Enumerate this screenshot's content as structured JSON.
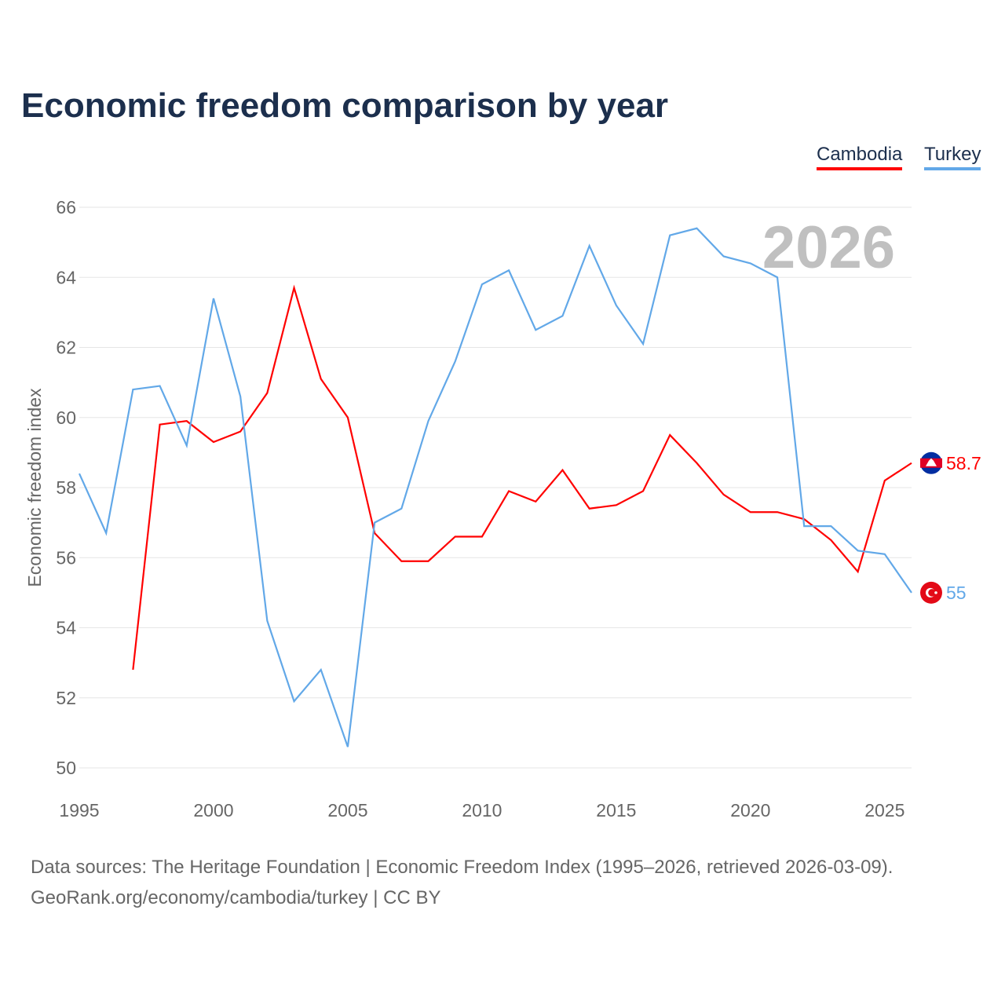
{
  "title": "Economic freedom comparison by year",
  "legend": [
    {
      "label": "Cambodia",
      "color": "#ff0000"
    },
    {
      "label": "Turkey",
      "color": "#62a8e8"
    }
  ],
  "footer": {
    "line1": "Data sources: The Heritage Foundation | Economic Freedom Index (1995–2026, retrieved 2026-03-09).",
    "line2": "GeoRank.org/economy/cambodia/turkey | CC BY"
  },
  "chart_data": {
    "type": "line",
    "title": "Economic freedom comparison by year",
    "ylabel": "Economic freedom index",
    "xlabel": "",
    "xlim": [
      1995,
      2026
    ],
    "ylim": [
      50,
      66
    ],
    "xticks": [
      "1995",
      "2000",
      "2005",
      "2010",
      "2015",
      "2020",
      "2025"
    ],
    "yticks": [
      "50",
      "52",
      "54",
      "56",
      "58",
      "60",
      "62",
      "64",
      "66"
    ],
    "year_watermark": "2026",
    "grid": true,
    "legend_position": "top-right",
    "series": [
      {
        "name": "Cambodia",
        "color": "#ff0000",
        "end_label": "58.7",
        "x": [
          1997,
          1998,
          1999,
          2000,
          2001,
          2002,
          2003,
          2004,
          2005,
          2006,
          2007,
          2008,
          2009,
          2010,
          2011,
          2012,
          2013,
          2014,
          2015,
          2016,
          2017,
          2018,
          2019,
          2020,
          2021,
          2022,
          2023,
          2024,
          2025,
          2026
        ],
        "values": [
          52.8,
          59.8,
          59.9,
          59.3,
          59.6,
          60.7,
          63.7,
          61.1,
          60.0,
          56.7,
          55.9,
          55.9,
          56.6,
          56.6,
          57.9,
          57.6,
          58.5,
          57.4,
          57.5,
          57.9,
          59.5,
          58.7,
          57.8,
          57.3,
          57.3,
          57.1,
          56.5,
          55.6,
          58.2,
          58.7
        ]
      },
      {
        "name": "Turkey",
        "color": "#62a8e8",
        "end_label": "55",
        "x": [
          1995,
          1996,
          1997,
          1998,
          1999,
          2000,
          2001,
          2002,
          2003,
          2004,
          2005,
          2006,
          2007,
          2008,
          2009,
          2010,
          2011,
          2012,
          2013,
          2014,
          2015,
          2016,
          2017,
          2018,
          2019,
          2020,
          2021,
          2022,
          2023,
          2024,
          2025,
          2026
        ],
        "values": [
          58.4,
          56.7,
          60.8,
          60.9,
          59.2,
          63.4,
          60.6,
          54.2,
          51.9,
          52.8,
          50.6,
          57.0,
          57.4,
          59.9,
          61.6,
          63.8,
          64.2,
          62.5,
          62.9,
          64.9,
          63.2,
          62.1,
          65.2,
          65.4,
          64.6,
          64.4,
          64.0,
          56.9,
          56.9,
          56.2,
          56.1,
          55.0
        ]
      }
    ]
  }
}
